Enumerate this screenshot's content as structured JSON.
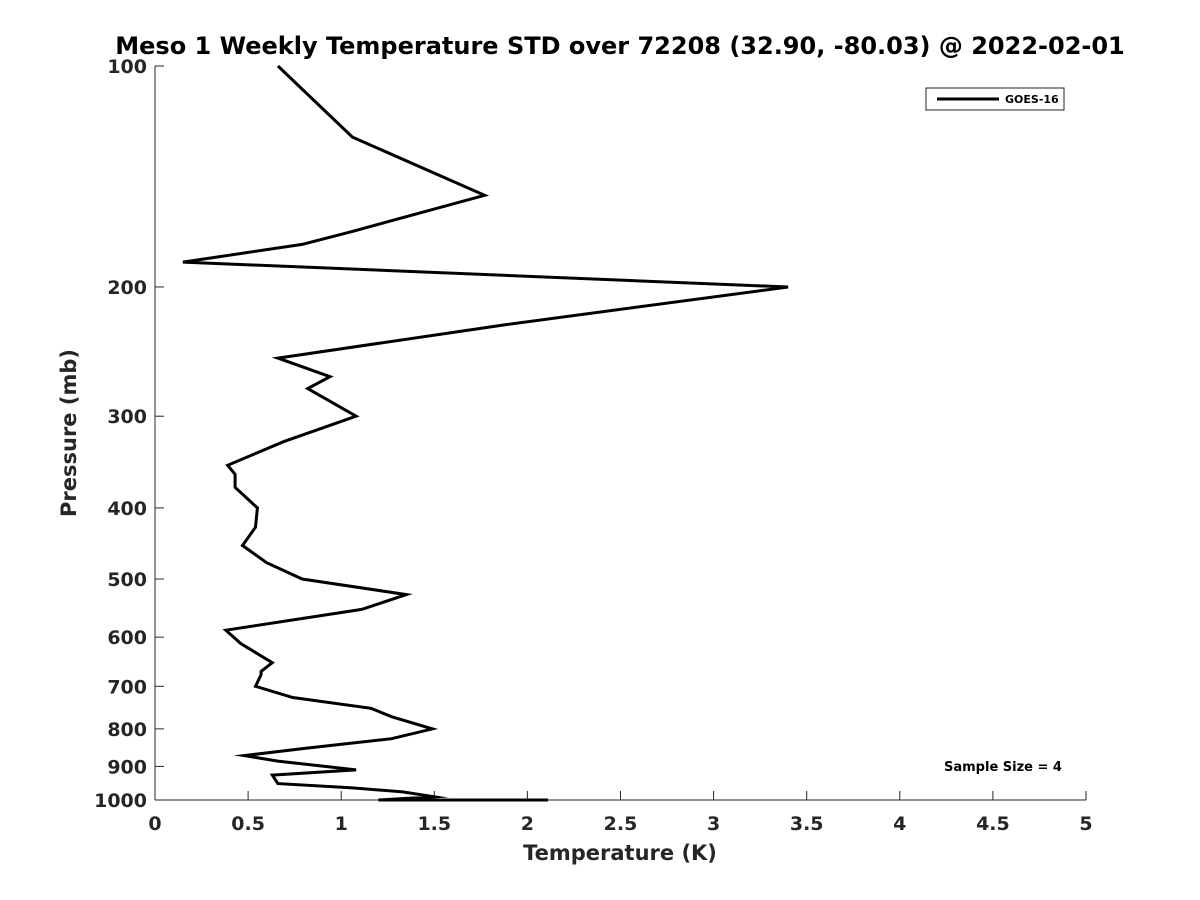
{
  "chart_data": {
    "type": "line",
    "title": "Meso 1 Weekly Temperature STD over 72208 (32.90, -80.03) @ 2022-02-01",
    "xlabel": "Temperature (K)",
    "ylabel": "Pressure (mb)",
    "xlim": [
      0,
      5
    ],
    "ylim": [
      100,
      1000
    ],
    "yscale": "log",
    "y_reversed": true,
    "xticks": [
      "0",
      "0.5",
      "1",
      "1.5",
      "2",
      "2.5",
      "3",
      "3.5",
      "4",
      "4.5",
      "5"
    ],
    "yticks": [
      "100",
      "200",
      "300",
      "400",
      "500",
      "600",
      "700",
      "800",
      "900",
      "1000"
    ],
    "grid": false,
    "legend_position": "top-right",
    "annotation": "Sample Size = 4",
    "series": [
      {
        "name": "GOES-16",
        "color": "#000000",
        "x": [
          0.66,
          1.06,
          1.77,
          1.06,
          0.79,
          0.15,
          3.4,
          1.89,
          0.66,
          0.94,
          0.82,
          1.08,
          0.69,
          0.39,
          0.43,
          0.43,
          0.55,
          0.54,
          0.47,
          0.6,
          0.79,
          1.35,
          1.11,
          0.38,
          0.46,
          0.63,
          0.57,
          0.57,
          0.54,
          0.74,
          1.16,
          1.27,
          1.49,
          1.27,
          0.81,
          0.48,
          0.66,
          1.08,
          0.63,
          0.66,
          1.05,
          1.33,
          1.5,
          1.2,
          2.11
        ],
        "y": [
          100,
          125,
          150,
          168,
          175,
          185,
          200,
          225,
          250,
          265,
          275,
          300,
          325,
          350,
          360,
          375,
          400,
          425,
          450,
          475,
          500,
          525,
          550,
          587,
          612,
          650,
          668,
          675,
          700,
          725,
          750,
          770,
          800,
          825,
          850,
          870,
          885,
          910,
          925,
          950,
          962,
          975,
          990,
          1000,
          1010
        ]
      }
    ]
  }
}
